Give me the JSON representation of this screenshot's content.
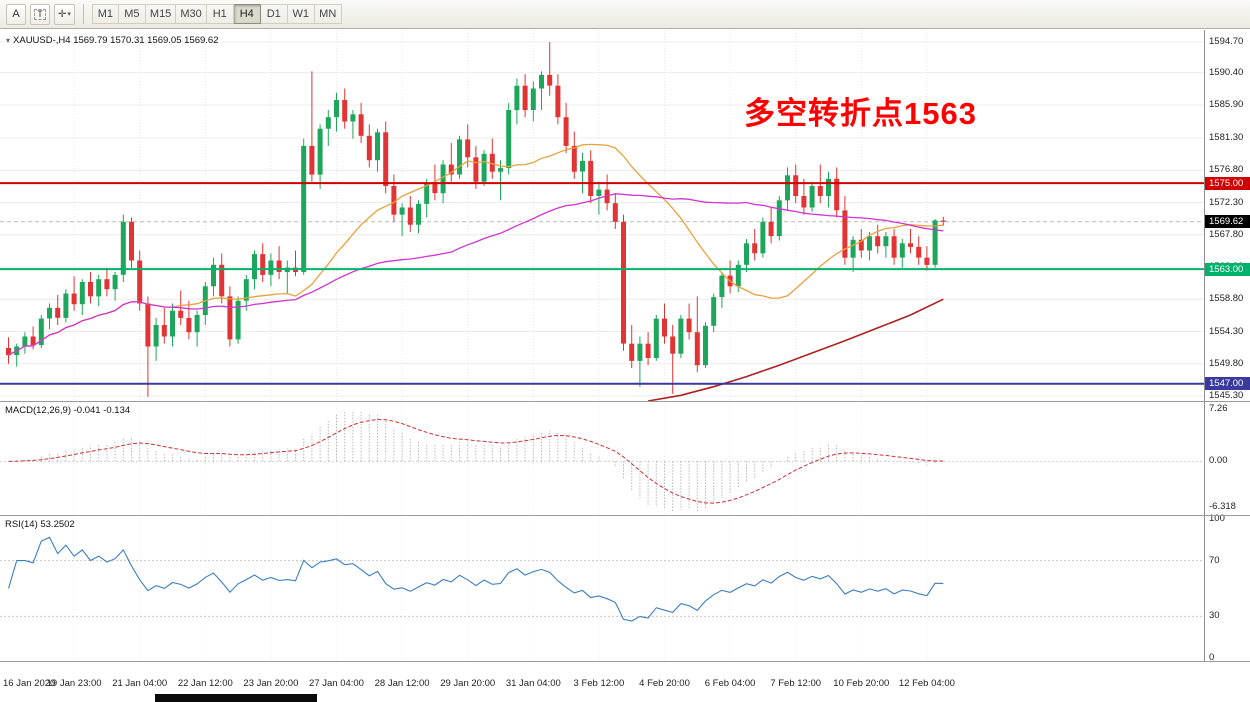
{
  "toolbar": {
    "left_buttons": [
      {
        "label": "A"
      },
      {
        "label": "T"
      },
      {
        "label": "✛"
      }
    ],
    "icons": {
      "dropdown": "▾",
      "collapse": "▾"
    },
    "timeframes": [
      {
        "label": "M1"
      },
      {
        "label": "M5"
      },
      {
        "label": "M15"
      },
      {
        "label": "M30"
      },
      {
        "label": "H1"
      },
      {
        "label": "H4"
      },
      {
        "label": "D1"
      },
      {
        "label": "W1"
      },
      {
        "label": "MN"
      }
    ],
    "active_timeframe": "H4"
  },
  "chart": {
    "title": "XAUUSD-,H4 1569.79 1570.31 1569.05 1569.62",
    "annotation": {
      "text": "多空转折点1563",
      "color": "#ff0000"
    },
    "macd_label": "MACD(12,26,9) -0.041 -0.134",
    "rsi_label": "RSI(14) 53.2502"
  },
  "colors": {
    "bull": "#1ea75c",
    "bear": "#e23434",
    "macd_hist": "#b8b8b8",
    "macd_signal": "#cc3333",
    "rsi_line": "#3b7ec0",
    "current_tag_bg": "#000000",
    "grid": "#ececec"
  },
  "chart_data": {
    "type": "candlestick+indicators",
    "symbol": "XAUUSD-",
    "timeframe": "H4",
    "ohlc_display": {
      "open": "1569.79",
      "high": "1570.31",
      "low": "1569.05",
      "close": "1569.62"
    },
    "price_axis": {
      "max": 1596.37,
      "min": 1544.6,
      "ticks": [
        1594.7,
        1590.4,
        1585.9,
        1581.3,
        1576.8,
        1572.3,
        1567.8,
        1563.3,
        1558.8,
        1554.3,
        1549.8,
        1545.3
      ]
    },
    "candles": [
      [
        1552.0,
        1553.5,
        1549.8,
        1551.0
      ],
      [
        1551.0,
        1552.6,
        1549.4,
        1552.2
      ],
      [
        1552.2,
        1554.2,
        1551.2,
        1553.6
      ],
      [
        1553.6,
        1555.0,
        1551.8,
        1552.4
      ],
      [
        1552.4,
        1556.6,
        1552.0,
        1556.1
      ],
      [
        1556.1,
        1558.2,
        1554.6,
        1557.6
      ],
      [
        1557.6,
        1559.4,
        1555.2,
        1556.2
      ],
      [
        1556.2,
        1560.2,
        1555.6,
        1559.6
      ],
      [
        1559.6,
        1562.0,
        1557.2,
        1558.1
      ],
      [
        1558.1,
        1561.6,
        1556.6,
        1561.2
      ],
      [
        1561.2,
        1562.6,
        1558.2,
        1559.2
      ],
      [
        1559.2,
        1562.2,
        1557.8,
        1561.6
      ],
      [
        1561.6,
        1563.2,
        1559.2,
        1560.2
      ],
      [
        1560.2,
        1562.6,
        1558.6,
        1562.2
      ],
      [
        1562.2,
        1570.6,
        1561.2,
        1569.6
      ],
      [
        1569.6,
        1570.2,
        1563.2,
        1564.2
      ],
      [
        1564.2,
        1565.6,
        1557.2,
        1558.2
      ],
      [
        1558.2,
        1559.2,
        1545.2,
        1552.2
      ],
      [
        1552.2,
        1556.2,
        1550.2,
        1555.2
      ],
      [
        1555.2,
        1557.6,
        1552.6,
        1553.6
      ],
      [
        1553.6,
        1558.2,
        1552.2,
        1557.2
      ],
      [
        1557.2,
        1560.0,
        1555.2,
        1556.2
      ],
      [
        1556.2,
        1558.6,
        1553.2,
        1554.2
      ],
      [
        1554.2,
        1557.2,
        1552.2,
        1556.6
      ],
      [
        1556.6,
        1561.2,
        1555.2,
        1560.6
      ],
      [
        1560.6,
        1564.6,
        1559.2,
        1563.6
      ],
      [
        1563.6,
        1565.2,
        1558.2,
        1559.2
      ],
      [
        1559.2,
        1560.6,
        1552.2,
        1553.2
      ],
      [
        1553.2,
        1559.2,
        1552.6,
        1558.6
      ],
      [
        1558.6,
        1562.2,
        1557.2,
        1561.6
      ],
      [
        1561.6,
        1565.6,
        1560.2,
        1565.1
      ],
      [
        1565.1,
        1566.6,
        1561.2,
        1562.2
      ],
      [
        1562.2,
        1565.2,
        1560.6,
        1564.2
      ],
      [
        1564.2,
        1566.2,
        1561.6,
        1562.6
      ],
      [
        1562.6,
        1564.2,
        1559.6,
        1563.2
      ],
      [
        1563.2,
        1565.6,
        1562.0,
        1562.6
      ],
      [
        1562.6,
        1581.2,
        1562.2,
        1580.2
      ],
      [
        1580.2,
        1590.6,
        1575.2,
        1576.2
      ],
      [
        1576.2,
        1583.2,
        1574.2,
        1582.6
      ],
      [
        1582.6,
        1585.2,
        1580.2,
        1584.2
      ],
      [
        1584.2,
        1587.6,
        1582.2,
        1586.6
      ],
      [
        1586.6,
        1588.2,
        1582.6,
        1583.6
      ],
      [
        1583.6,
        1585.2,
        1581.2,
        1584.6
      ],
      [
        1584.6,
        1586.2,
        1580.6,
        1581.6
      ],
      [
        1581.6,
        1583.2,
        1577.2,
        1578.2
      ],
      [
        1578.2,
        1582.6,
        1576.6,
        1582.1
      ],
      [
        1582.1,
        1583.6,
        1573.6,
        1574.6
      ],
      [
        1574.6,
        1576.2,
        1569.6,
        1570.6
      ],
      [
        1570.6,
        1572.2,
        1567.6,
        1571.6
      ],
      [
        1571.6,
        1573.2,
        1568.2,
        1569.2
      ],
      [
        1569.2,
        1572.6,
        1568.0,
        1572.1
      ],
      [
        1572.1,
        1575.6,
        1570.2,
        1575.1
      ],
      [
        1575.1,
        1577.6,
        1572.6,
        1573.6
      ],
      [
        1573.6,
        1578.2,
        1572.2,
        1577.6
      ],
      [
        1577.6,
        1580.6,
        1575.2,
        1576.2
      ],
      [
        1576.2,
        1581.6,
        1575.6,
        1581.1
      ],
      [
        1581.1,
        1583.2,
        1577.2,
        1578.6
      ],
      [
        1578.6,
        1580.2,
        1574.2,
        1575.2
      ],
      [
        1575.2,
        1579.6,
        1574.6,
        1579.1
      ],
      [
        1579.1,
        1581.2,
        1575.6,
        1576.6
      ],
      [
        1576.6,
        1578.2,
        1572.6,
        1577.1
      ],
      [
        1577.1,
        1586.2,
        1576.2,
        1585.2
      ],
      [
        1585.2,
        1589.6,
        1583.2,
        1588.6
      ],
      [
        1588.6,
        1590.2,
        1584.2,
        1585.2
      ],
      [
        1585.2,
        1589.2,
        1583.6,
        1588.2
      ],
      [
        1588.2,
        1590.6,
        1585.2,
        1590.1
      ],
      [
        1590.1,
        1594.7,
        1587.2,
        1588.6
      ],
      [
        1588.6,
        1590.2,
        1583.2,
        1584.2
      ],
      [
        1584.2,
        1586.2,
        1579.2,
        1580.2
      ],
      [
        1580.2,
        1582.2,
        1575.6,
        1576.6
      ],
      [
        1576.6,
        1579.2,
        1573.6,
        1578.1
      ],
      [
        1578.1,
        1579.6,
        1572.2,
        1573.2
      ],
      [
        1573.2,
        1575.2,
        1570.6,
        1574.1
      ],
      [
        1574.1,
        1576.2,
        1571.2,
        1572.2
      ],
      [
        1572.2,
        1573.6,
        1568.6,
        1569.6
      ],
      [
        1569.6,
        1570.6,
        1551.6,
        1552.6
      ],
      [
        1552.6,
        1555.2,
        1549.2,
        1550.2
      ],
      [
        1550.2,
        1553.6,
        1546.6,
        1552.6
      ],
      [
        1552.6,
        1554.2,
        1549.6,
        1550.6
      ],
      [
        1550.6,
        1556.6,
        1550.2,
        1556.1
      ],
      [
        1556.1,
        1558.2,
        1552.6,
        1553.6
      ],
      [
        1553.6,
        1555.2,
        1545.6,
        1551.2
      ],
      [
        1551.2,
        1556.6,
        1550.6,
        1556.1
      ],
      [
        1556.1,
        1558.2,
        1553.2,
        1554.2
      ],
      [
        1554.2,
        1559.2,
        1548.6,
        1549.6
      ],
      [
        1549.6,
        1555.6,
        1549.2,
        1555.1
      ],
      [
        1555.1,
        1559.6,
        1554.2,
        1559.1
      ],
      [
        1559.1,
        1562.6,
        1557.6,
        1562.1
      ],
      [
        1562.1,
        1564.2,
        1559.6,
        1560.6
      ],
      [
        1560.6,
        1564.2,
        1559.8,
        1563.6
      ],
      [
        1563.6,
        1567.2,
        1562.6,
        1566.6
      ],
      [
        1566.6,
        1568.6,
        1564.2,
        1565.2
      ],
      [
        1565.2,
        1570.2,
        1564.6,
        1569.6
      ],
      [
        1569.6,
        1571.6,
        1566.6,
        1567.6
      ],
      [
        1567.6,
        1573.2,
        1567.0,
        1572.6
      ],
      [
        1572.6,
        1577.2,
        1571.2,
        1576.1
      ],
      [
        1576.1,
        1577.6,
        1572.2,
        1573.2
      ],
      [
        1573.2,
        1575.6,
        1570.6,
        1571.6
      ],
      [
        1571.6,
        1575.2,
        1571.0,
        1574.6
      ],
      [
        1574.6,
        1577.6,
        1572.2,
        1573.2
      ],
      [
        1573.2,
        1576.6,
        1571.6,
        1575.6
      ],
      [
        1575.6,
        1577.2,
        1570.2,
        1571.2
      ],
      [
        1571.2,
        1573.2,
        1563.6,
        1564.6
      ],
      [
        1564.6,
        1567.6,
        1562.6,
        1567.1
      ],
      [
        1567.1,
        1568.6,
        1564.6,
        1565.6
      ],
      [
        1565.6,
        1568.2,
        1564.2,
        1567.6
      ],
      [
        1567.6,
        1569.2,
        1565.2,
        1566.2
      ],
      [
        1566.2,
        1568.2,
        1564.6,
        1567.6
      ],
      [
        1567.6,
        1568.6,
        1563.6,
        1564.6
      ],
      [
        1564.6,
        1567.2,
        1563.2,
        1566.6
      ],
      [
        1566.6,
        1568.6,
        1565.2,
        1566.1
      ],
      [
        1566.1,
        1567.6,
        1563.6,
        1564.6
      ],
      [
        1564.6,
        1566.2,
        1562.8,
        1563.6
      ],
      [
        1563.6,
        1570.0,
        1563.2,
        1569.8
      ],
      [
        1569.79,
        1570.31,
        1569.05,
        1569.62
      ]
    ],
    "time_labels": [
      {
        "index": 0,
        "text": "16 Jan 2020"
      },
      {
        "index": 8,
        "text": "19 Jan 23:00"
      },
      {
        "index": 16,
        "text": "21 Jan 04:00"
      },
      {
        "index": 24,
        "text": "22 Jan 12:00"
      },
      {
        "index": 32,
        "text": "23 Jan 20:00"
      },
      {
        "index": 40,
        "text": "27 Jan 04:00"
      },
      {
        "index": 48,
        "text": "28 Jan 12:00"
      },
      {
        "index": 56,
        "text": "29 Jan 20:00"
      },
      {
        "index": 64,
        "text": "31 Jan 04:00"
      },
      {
        "index": 72,
        "text": "3 Feb 12:00"
      },
      {
        "index": 80,
        "text": "4 Feb 20:00"
      },
      {
        "index": 88,
        "text": "6 Feb 04:00"
      },
      {
        "index": 96,
        "text": "7 Feb 12:00"
      },
      {
        "index": 104,
        "text": "10 Feb 20:00"
      },
      {
        "index": 112,
        "text": "12 Feb 04:00"
      }
    ],
    "hlines": [
      {
        "price": 1575.0,
        "color": "#d10000",
        "tag": "1575.00"
      },
      {
        "price": 1563.0,
        "color": "#00b26b",
        "tag": "1563.00"
      },
      {
        "price": 1547.0,
        "color": "#3a3a9e",
        "tag": "1547.00"
      }
    ],
    "current_price": {
      "value": 1569.62,
      "tag": "1569.62"
    },
    "moving_averages": [
      {
        "period": 21,
        "color": "#e8a23c",
        "name": "ma-fast-orange"
      },
      {
        "period": 55,
        "color": "#d233d2",
        "name": "ma-slow-magenta"
      }
    ],
    "trend_line": {
      "color": "#b02020",
      "points": [
        [
          78,
          1544.6
        ],
        [
          82,
          1545.4
        ],
        [
          86,
          1546.6
        ],
        [
          90,
          1548.0
        ],
        [
          94,
          1549.6
        ],
        [
          98,
          1551.3
        ],
        [
          102,
          1553.0
        ],
        [
          106,
          1554.8
        ],
        [
          110,
          1556.6
        ],
        [
          114,
          1558.8
        ]
      ]
    },
    "macd": {
      "params": [
        12,
        26,
        9
      ],
      "values_label": "-0.041 -0.134",
      "scale_max": 8.3,
      "scale_min": -7.5,
      "axis_labels": [
        {
          "text": "7.26",
          "value": 7.26
        },
        {
          "text": "0.00",
          "value": 0
        },
        {
          "text": "-6.318",
          "value": -6.318
        }
      ]
    },
    "rsi": {
      "period": 14,
      "value_label": "53.2502",
      "levels": [
        70,
        30
      ],
      "axis_labels": [
        {
          "text": "100",
          "value": 100
        },
        {
          "text": "70",
          "value": 70
        },
        {
          "text": "30",
          "value": 30
        },
        {
          "text": "0",
          "value": 0
        }
      ]
    }
  }
}
